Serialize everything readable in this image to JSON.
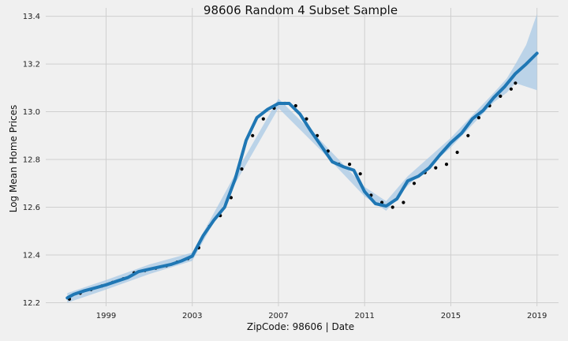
{
  "chart_data": {
    "type": "line",
    "title": "98606 Random 4 Subset Sample",
    "xlabel": "ZipCode: 98606 | Date",
    "ylabel": "Log Mean Home Prices",
    "xlim": [
      1996.2,
      2020.0
    ],
    "ylim": [
      12.185,
      13.435
    ],
    "x_ticks": [
      1999,
      2003,
      2007,
      2011,
      2015,
      2019
    ],
    "y_ticks": [
      12.2,
      12.4,
      12.6,
      12.8,
      13.0,
      13.2,
      13.4
    ],
    "x_tick_labels": [
      "1999",
      "2003",
      "2007",
      "2011",
      "2015",
      "2019"
    ],
    "y_tick_labels": [
      "12.2",
      "12.4",
      "12.6",
      "12.8",
      "13.0",
      "13.2",
      "13.4"
    ],
    "grid": true,
    "colors": {
      "forecast": "#1f77b4",
      "band": "#a9c9e6",
      "actual": "#000000",
      "grid": "#cfcfcf",
      "background": "#f0f0f0"
    },
    "series": [
      {
        "kind": "observed points",
        "x": [
          1997.3,
          1997.8,
          1998.3,
          1998.8,
          1999.3,
          1999.8,
          2000.3,
          2000.8,
          2001.3,
          2001.8,
          2002.3,
          2002.8,
          2003.3,
          2003.8,
          2004.3,
          2004.8,
          2005.3,
          2005.8,
          2006.3,
          2006.8,
          2007.3,
          2007.8,
          2008.3,
          2008.8,
          2009.3,
          2009.8,
          2010.3,
          2010.8,
          2011.3,
          2011.8,
          2012.3,
          2012.8,
          2013.3,
          2013.8,
          2014.3,
          2014.8,
          2015.3,
          2015.8,
          2016.3,
          2016.8,
          2017.3,
          2017.8,
          2018.0
        ],
        "y": [
          12.215,
          12.24,
          12.255,
          12.27,
          12.285,
          12.3,
          12.325,
          12.335,
          12.345,
          12.355,
          12.37,
          12.385,
          12.43,
          12.52,
          12.565,
          12.64,
          12.76,
          12.9,
          12.97,
          13.015,
          13.035,
          13.025,
          12.97,
          12.9,
          12.835,
          12.78,
          12.78,
          12.74,
          12.65,
          12.62,
          12.6,
          12.62,
          12.7,
          12.745,
          12.765,
          12.78,
          12.83,
          12.9,
          12.975,
          13.025,
          13.065,
          13.095,
          13.12
        ]
      },
      {
        "kind": "forecast line",
        "x": [
          1997.2,
          1997.5,
          1998.0,
          1998.5,
          1999.0,
          1999.5,
          2000.0,
          2000.5,
          2001.0,
          2001.5,
          2002.0,
          2002.5,
          2003.0,
          2003.5,
          2004.0,
          2004.5,
          2005.0,
          2005.5,
          2006.0,
          2006.5,
          2007.0,
          2007.5,
          2008.0,
          2008.5,
          2009.0,
          2009.5,
          2010.0,
          2010.5,
          2011.0,
          2011.5,
          2012.0,
          2012.5,
          2013.0,
          2013.5,
          2014.0,
          2014.5,
          2015.0,
          2015.5,
          2016.0,
          2016.5,
          2017.0,
          2017.5,
          2018.0,
          2018.5,
          2019.0
        ],
        "y": [
          12.22,
          12.235,
          12.25,
          12.262,
          12.275,
          12.29,
          12.305,
          12.33,
          12.34,
          12.35,
          12.36,
          12.375,
          12.395,
          12.48,
          12.545,
          12.6,
          12.72,
          12.88,
          12.975,
          13.01,
          13.035,
          13.035,
          12.99,
          12.92,
          12.855,
          12.79,
          12.77,
          12.755,
          12.665,
          12.615,
          12.605,
          12.635,
          12.71,
          12.73,
          12.765,
          12.82,
          12.87,
          12.91,
          12.97,
          13.005,
          13.06,
          13.105,
          13.16,
          13.2,
          13.245
        ]
      },
      {
        "kind": "forecast upper bound",
        "x": [
          1997.2,
          1999.0,
          2001.0,
          2003.0,
          2005.0,
          2007.0,
          2009.0,
          2011.0,
          2012.0,
          2013.0,
          2015.0,
          2017.0,
          2017.6,
          2018.0,
          2018.5,
          2019.0
        ],
        "y": [
          12.24,
          12.295,
          12.36,
          12.41,
          12.74,
          13.055,
          12.875,
          12.685,
          12.625,
          12.73,
          12.89,
          13.08,
          13.14,
          13.2,
          13.28,
          13.41
        ]
      },
      {
        "kind": "forecast lower bound",
        "x": [
          1997.2,
          1999.0,
          2001.0,
          2003.0,
          2005.0,
          2007.0,
          2009.0,
          2011.0,
          2012.0,
          2013.0,
          2015.0,
          2017.0,
          2017.6,
          2018.0,
          2018.5,
          2019.0
        ],
        "y": [
          12.2,
          12.255,
          12.32,
          12.375,
          12.7,
          13.015,
          12.835,
          12.645,
          12.585,
          12.69,
          12.85,
          13.04,
          13.08,
          13.12,
          13.105,
          13.09
        ]
      }
    ]
  }
}
